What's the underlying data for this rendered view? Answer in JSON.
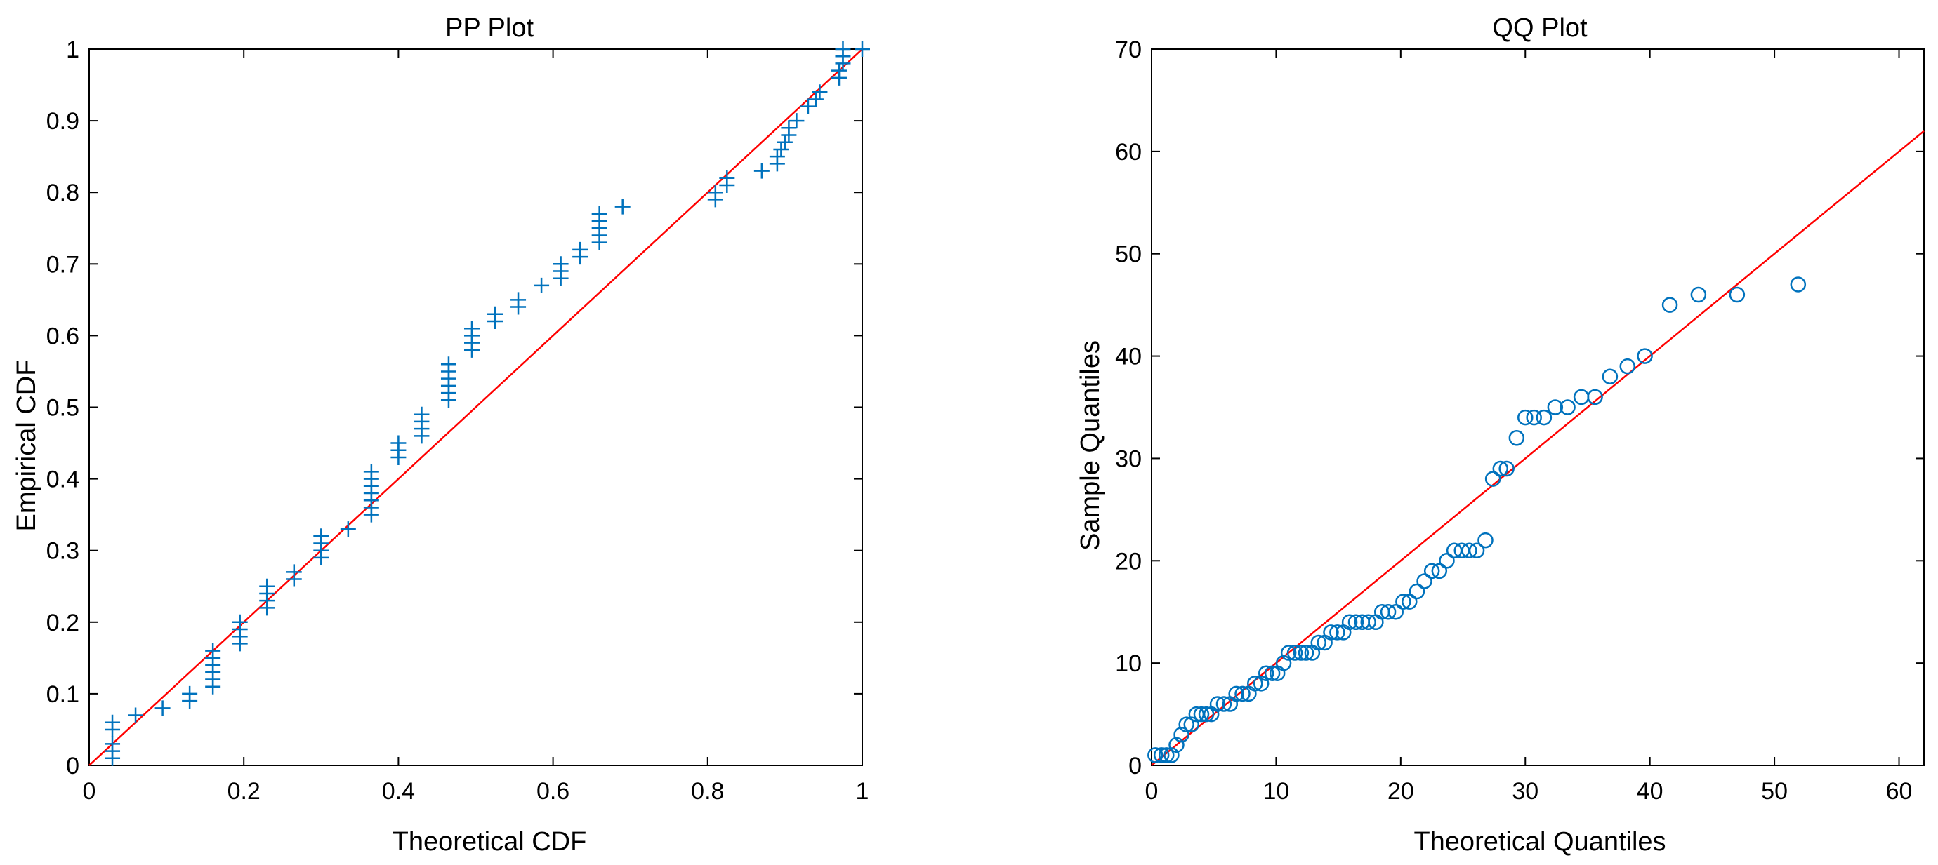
{
  "chart_data": [
    {
      "type": "scatter",
      "title": "PP Plot",
      "xlabel": "Theoretical CDF",
      "ylabel": "Empirical CDF",
      "xlim": [
        0,
        1
      ],
      "ylim": [
        0,
        1
      ],
      "xticks": [
        "0",
        "0.2",
        "0.4",
        "0.6",
        "0.8",
        "1"
      ],
      "xtick_values": [
        0,
        0.2,
        0.4,
        0.6,
        0.8,
        1
      ],
      "yticks": [
        "0",
        "0.1",
        "0.2",
        "0.3",
        "0.4",
        "0.5",
        "0.6",
        "0.7",
        "0.8",
        "0.9",
        "1"
      ],
      "ytick_values": [
        0,
        0.1,
        0.2,
        0.3,
        0.4,
        0.5,
        0.6,
        0.7,
        0.8,
        0.9,
        1
      ],
      "marker": "plus",
      "marker_color": "#0072bd",
      "reference_line": {
        "x": [
          0,
          1
        ],
        "y": [
          0,
          1
        ],
        "color": "#ff0000"
      },
      "grid": false,
      "x": [
        0.03,
        0.03,
        0.03,
        0.03,
        0.03,
        0.06,
        0.095,
        0.13,
        0.13,
        0.16,
        0.16,
        0.16,
        0.16,
        0.16,
        0.16,
        0.195,
        0.195,
        0.195,
        0.195,
        0.23,
        0.23,
        0.23,
        0.23,
        0.265,
        0.265,
        0.3,
        0.3,
        0.3,
        0.3,
        0.335,
        0.365,
        0.365,
        0.365,
        0.365,
        0.365,
        0.365,
        0.365,
        0.4,
        0.4,
        0.4,
        0.43,
        0.43,
        0.43,
        0.43,
        0.465,
        0.465,
        0.465,
        0.465,
        0.465,
        0.465,
        0.495,
        0.495,
        0.495,
        0.495,
        0.525,
        0.525,
        0.555,
        0.555,
        0.585,
        0.61,
        0.61,
        0.61,
        0.635,
        0.635,
        0.66,
        0.66,
        0.66,
        0.66,
        0.66,
        0.69,
        0.81,
        0.81,
        0.825,
        0.825,
        0.87,
        0.89,
        0.89,
        0.895,
        0.9,
        0.905,
        0.905,
        0.915,
        0.93,
        0.94,
        0.945,
        0.97,
        0.97,
        0.975,
        0.975,
        0.975,
        1.0
      ],
      "y": [
        0.01,
        0.02,
        0.03,
        0.05,
        0.06,
        0.07,
        0.08,
        0.09,
        0.1,
        0.11,
        0.12,
        0.13,
        0.14,
        0.15,
        0.16,
        0.17,
        0.18,
        0.19,
        0.2,
        0.22,
        0.23,
        0.24,
        0.25,
        0.26,
        0.27,
        0.29,
        0.3,
        0.31,
        0.32,
        0.33,
        0.35,
        0.36,
        0.37,
        0.38,
        0.39,
        0.4,
        0.41,
        0.43,
        0.44,
        0.45,
        0.46,
        0.47,
        0.48,
        0.49,
        0.51,
        0.52,
        0.53,
        0.54,
        0.55,
        0.56,
        0.58,
        0.59,
        0.6,
        0.61,
        0.62,
        0.63,
        0.64,
        0.65,
        0.67,
        0.68,
        0.69,
        0.7,
        0.71,
        0.72,
        0.73,
        0.74,
        0.75,
        0.76,
        0.77,
        0.78,
        0.79,
        0.8,
        0.81,
        0.82,
        0.83,
        0.84,
        0.85,
        0.86,
        0.87,
        0.88,
        0.89,
        0.9,
        0.92,
        0.93,
        0.94,
        0.96,
        0.97,
        0.98,
        0.99,
        1.0,
        1.0
      ]
    },
    {
      "type": "scatter",
      "title": "QQ Plot",
      "xlabel": "Theoretical Quantiles",
      "ylabel": "Sample Quantiles",
      "xlim": [
        0,
        62
      ],
      "ylim": [
        0,
        70
      ],
      "xticks": [
        "0",
        "10",
        "20",
        "30",
        "40",
        "50",
        "60"
      ],
      "xtick_values": [
        0,
        10,
        20,
        30,
        40,
        50,
        60
      ],
      "yticks": [
        "0",
        "10",
        "20",
        "30",
        "40",
        "50",
        "60",
        "70"
      ],
      "ytick_values": [
        0,
        10,
        20,
        30,
        40,
        50,
        60,
        70
      ],
      "marker": "circle",
      "marker_color": "#0072bd",
      "reference_line": {
        "x": [
          0,
          62
        ],
        "y": [
          0,
          62
        ],
        "color": "#ff0000"
      },
      "grid": false,
      "x": [
        0.3,
        0.8,
        1.2,
        1.6,
        2.0,
        2.4,
        2.8,
        3.2,
        3.6,
        4.0,
        4.4,
        4.8,
        5.3,
        5.8,
        6.3,
        6.8,
        7.3,
        7.8,
        8.3,
        8.8,
        9.2,
        9.7,
        10.1,
        10.6,
        11.0,
        11.5,
        12.0,
        12.4,
        12.9,
        13.4,
        13.9,
        14.4,
        14.9,
        15.4,
        15.9,
        16.4,
        16.9,
        17.4,
        18.0,
        18.5,
        19.0,
        19.6,
        20.2,
        20.7,
        21.3,
        21.9,
        22.5,
        23.1,
        23.7,
        24.3,
        24.9,
        25.5,
        26.1,
        26.8,
        27.4,
        28.0,
        28.5,
        29.3,
        30.0,
        30.7,
        31.5,
        32.4,
        33.4,
        34.5,
        35.6,
        36.8,
        38.2,
        39.6,
        41.6,
        43.9,
        47.0,
        51.9
      ],
      "y": [
        1,
        1,
        1,
        1,
        2,
        3,
        4,
        4,
        5,
        5,
        5,
        5,
        6,
        6,
        6,
        7,
        7,
        7,
        8,
        8,
        9,
        9,
        9,
        10,
        11,
        11,
        11,
        11,
        11,
        12,
        12,
        13,
        13,
        13,
        14,
        14,
        14,
        14,
        14,
        15,
        15,
        15,
        16,
        16,
        17,
        18,
        19,
        19,
        20,
        21,
        21,
        21,
        21,
        22,
        28,
        29,
        29,
        32,
        34,
        34,
        34,
        35,
        35,
        36,
        36,
        38,
        39,
        40,
        45,
        46,
        46,
        47
      ]
    }
  ]
}
